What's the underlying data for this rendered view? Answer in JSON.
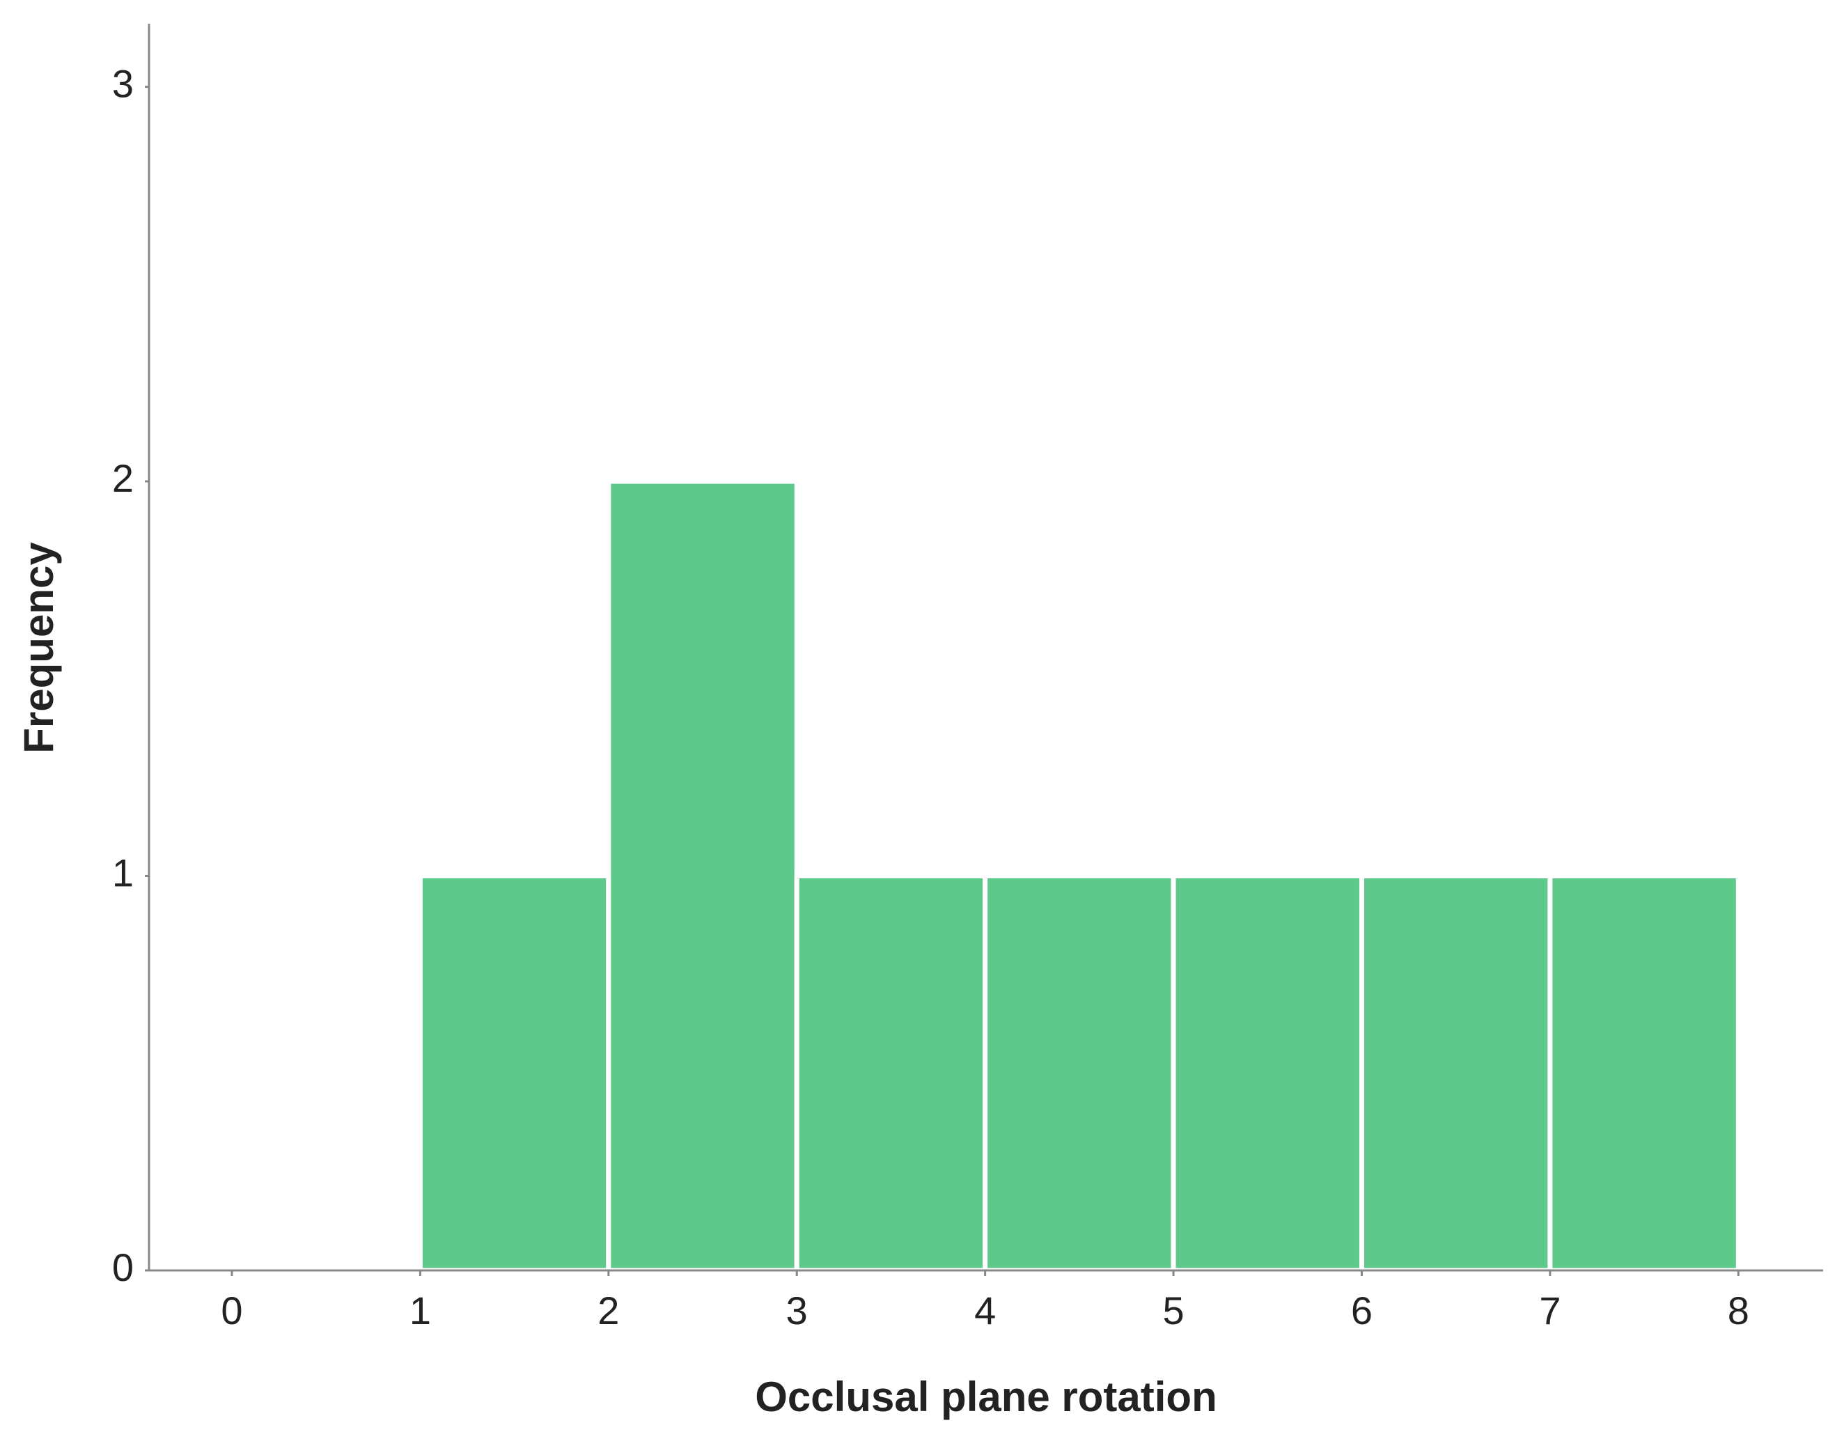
{
  "chart_data": {
    "type": "histogram",
    "x_label": "Occlusal plane rotation",
    "y_label": "Frequency",
    "bins": [
      1,
      2,
      3,
      4,
      5,
      6,
      7,
      8
    ],
    "values": [
      1,
      2,
      1,
      1,
      1,
      1,
      1
    ],
    "color": "#5ec98a",
    "xlim": [
      -0.44,
      8.45
    ],
    "xticks": [
      0,
      1,
      2,
      3,
      4,
      5,
      6,
      7,
      8
    ],
    "ylim": [
      0,
      3.16
    ],
    "yticks": [
      0,
      1,
      2,
      3
    ],
    "grid": false
  }
}
